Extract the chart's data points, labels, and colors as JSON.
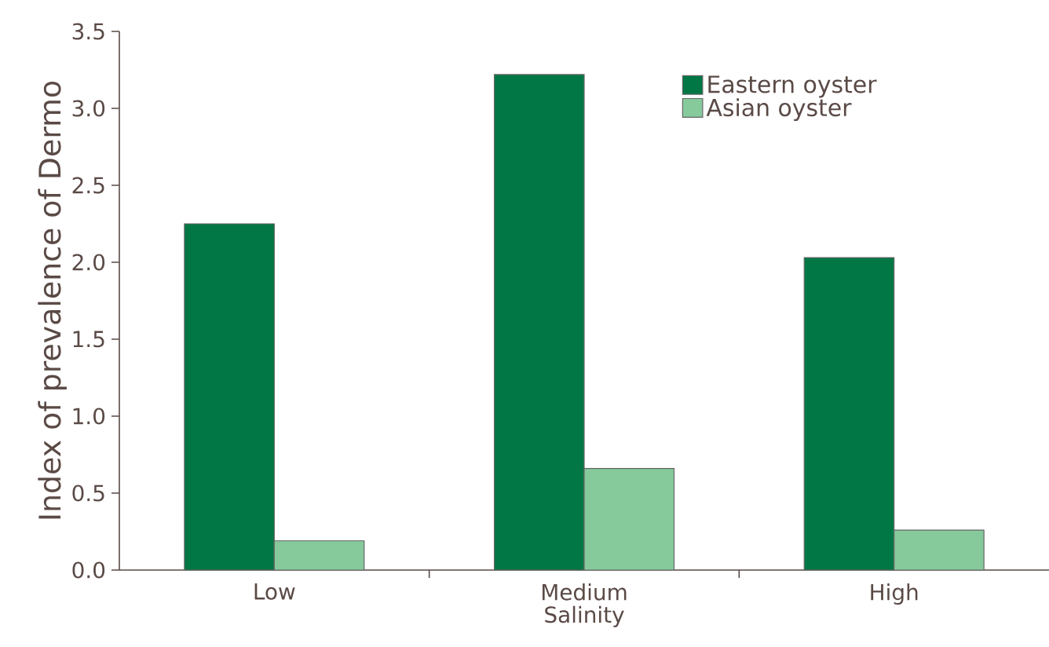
{
  "chart_data": {
    "type": "bar",
    "xlabel": "Salinity",
    "ylabel": "Index of prevalence of Dermo",
    "categories": [
      "Low",
      "Medium",
      "High"
    ],
    "series": [
      {
        "name": "Eastern oyster",
        "color": "#007744",
        "values": [
          2.25,
          3.22,
          2.03
        ]
      },
      {
        "name": "Asian oyster",
        "color": "#86ca9c",
        "values": [
          0.19,
          0.66,
          0.26
        ]
      }
    ],
    "ylim": [
      0,
      3.5
    ],
    "yticks": [
      {
        "value": 0,
        "label": "0.0"
      },
      {
        "value": 0.5,
        "label": "0.5"
      },
      {
        "value": 1,
        "label": "1.0"
      },
      {
        "value": 1.5,
        "label": "1.5"
      },
      {
        "value": 2,
        "label": "2.0"
      },
      {
        "value": 2.5,
        "label": "2.5"
      },
      {
        "value": 3,
        "label": "3.0"
      },
      {
        "value": 3.5,
        "label": "3.5"
      }
    ],
    "legend": "top right",
    "grid": false
  }
}
